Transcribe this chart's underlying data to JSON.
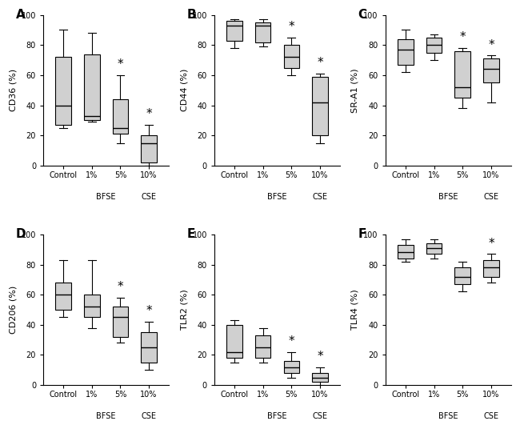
{
  "panels": [
    {
      "label": "A",
      "ylabel": "CD36 (%)",
      "ylim": [
        0,
        100
      ],
      "yticks": [
        0,
        20,
        40,
        60,
        80,
        100
      ],
      "boxes": [
        {
          "whislo": 25,
          "q1": 27,
          "med": 40,
          "q3": 72,
          "whishi": 90,
          "sig": false
        },
        {
          "whislo": 29,
          "q1": 30,
          "med": 33,
          "q3": 74,
          "whishi": 88,
          "sig": false
        },
        {
          "whislo": 15,
          "q1": 21,
          "med": 25,
          "q3": 44,
          "whishi": 60,
          "sig": true
        },
        {
          "whislo": 0,
          "q1": 2,
          "med": 15,
          "q3": 20,
          "whishi": 27,
          "sig": true
        }
      ]
    },
    {
      "label": "B",
      "ylabel": "CD44 (%)",
      "ylim": [
        0,
        100
      ],
      "yticks": [
        0,
        20,
        40,
        60,
        80,
        100
      ],
      "boxes": [
        {
          "whislo": 78,
          "q1": 83,
          "med": 93,
          "q3": 96,
          "whishi": 97,
          "sig": false
        },
        {
          "whislo": 79,
          "q1": 82,
          "med": 93,
          "q3": 95,
          "whishi": 97,
          "sig": false
        },
        {
          "whislo": 60,
          "q1": 65,
          "med": 72,
          "q3": 80,
          "whishi": 85,
          "sig": true
        },
        {
          "whislo": 15,
          "q1": 20,
          "med": 42,
          "q3": 59,
          "whishi": 61,
          "sig": true
        }
      ]
    },
    {
      "label": "C",
      "ylabel": "SR-A1 (%)",
      "ylim": [
        0,
        100
      ],
      "yticks": [
        0,
        20,
        40,
        60,
        80,
        100
      ],
      "boxes": [
        {
          "whislo": 62,
          "q1": 67,
          "med": 77,
          "q3": 84,
          "whishi": 90,
          "sig": false
        },
        {
          "whislo": 70,
          "q1": 75,
          "med": 80,
          "q3": 85,
          "whishi": 87,
          "sig": false
        },
        {
          "whislo": 38,
          "q1": 45,
          "med": 52,
          "q3": 76,
          "whishi": 78,
          "sig": true
        },
        {
          "whislo": 42,
          "q1": 55,
          "med": 64,
          "q3": 71,
          "whishi": 73,
          "sig": true
        }
      ]
    },
    {
      "label": "D",
      "ylabel": "CD206 (%)",
      "ylim": [
        0,
        100
      ],
      "yticks": [
        0,
        20,
        40,
        60,
        80,
        100
      ],
      "boxes": [
        {
          "whislo": 45,
          "q1": 50,
          "med": 60,
          "q3": 68,
          "whishi": 83,
          "sig": false
        },
        {
          "whislo": 38,
          "q1": 45,
          "med": 52,
          "q3": 60,
          "whishi": 83,
          "sig": false
        },
        {
          "whislo": 28,
          "q1": 32,
          "med": 45,
          "q3": 52,
          "whishi": 58,
          "sig": true
        },
        {
          "whislo": 10,
          "q1": 15,
          "med": 25,
          "q3": 35,
          "whishi": 42,
          "sig": true
        }
      ]
    },
    {
      "label": "E",
      "ylabel": "TLR2 (%)",
      "ylim": [
        0,
        100
      ],
      "yticks": [
        0,
        20,
        40,
        60,
        80,
        100
      ],
      "boxes": [
        {
          "whislo": 15,
          "q1": 18,
          "med": 22,
          "q3": 40,
          "whishi": 43,
          "sig": false
        },
        {
          "whislo": 15,
          "q1": 18,
          "med": 25,
          "q3": 33,
          "whishi": 38,
          "sig": false
        },
        {
          "whislo": 5,
          "q1": 8,
          "med": 12,
          "q3": 16,
          "whishi": 22,
          "sig": true
        },
        {
          "whislo": 0,
          "q1": 2,
          "med": 5,
          "q3": 8,
          "whishi": 12,
          "sig": true
        }
      ]
    },
    {
      "label": "F",
      "ylabel": "TLR4 (%)",
      "ylim": [
        0,
        100
      ],
      "yticks": [
        0,
        20,
        40,
        60,
        80,
        100
      ],
      "boxes": [
        {
          "whislo": 82,
          "q1": 84,
          "med": 88,
          "q3": 93,
          "whishi": 97,
          "sig": false
        },
        {
          "whislo": 84,
          "q1": 87,
          "med": 91,
          "q3": 94,
          "whishi": 97,
          "sig": false
        },
        {
          "whislo": 62,
          "q1": 67,
          "med": 72,
          "q3": 78,
          "whishi": 82,
          "sig": false
        },
        {
          "whislo": 68,
          "q1": 72,
          "med": 78,
          "q3": 83,
          "whishi": 87,
          "sig": true
        }
      ]
    }
  ],
  "box_color": "#d0d0d0",
  "box_edgecolor": "#000000",
  "sig_symbol": "*",
  "sig_fontsize": 11,
  "tick_fontsize": 7,
  "ylabel_fontsize": 8,
  "label_fontsize": 11
}
